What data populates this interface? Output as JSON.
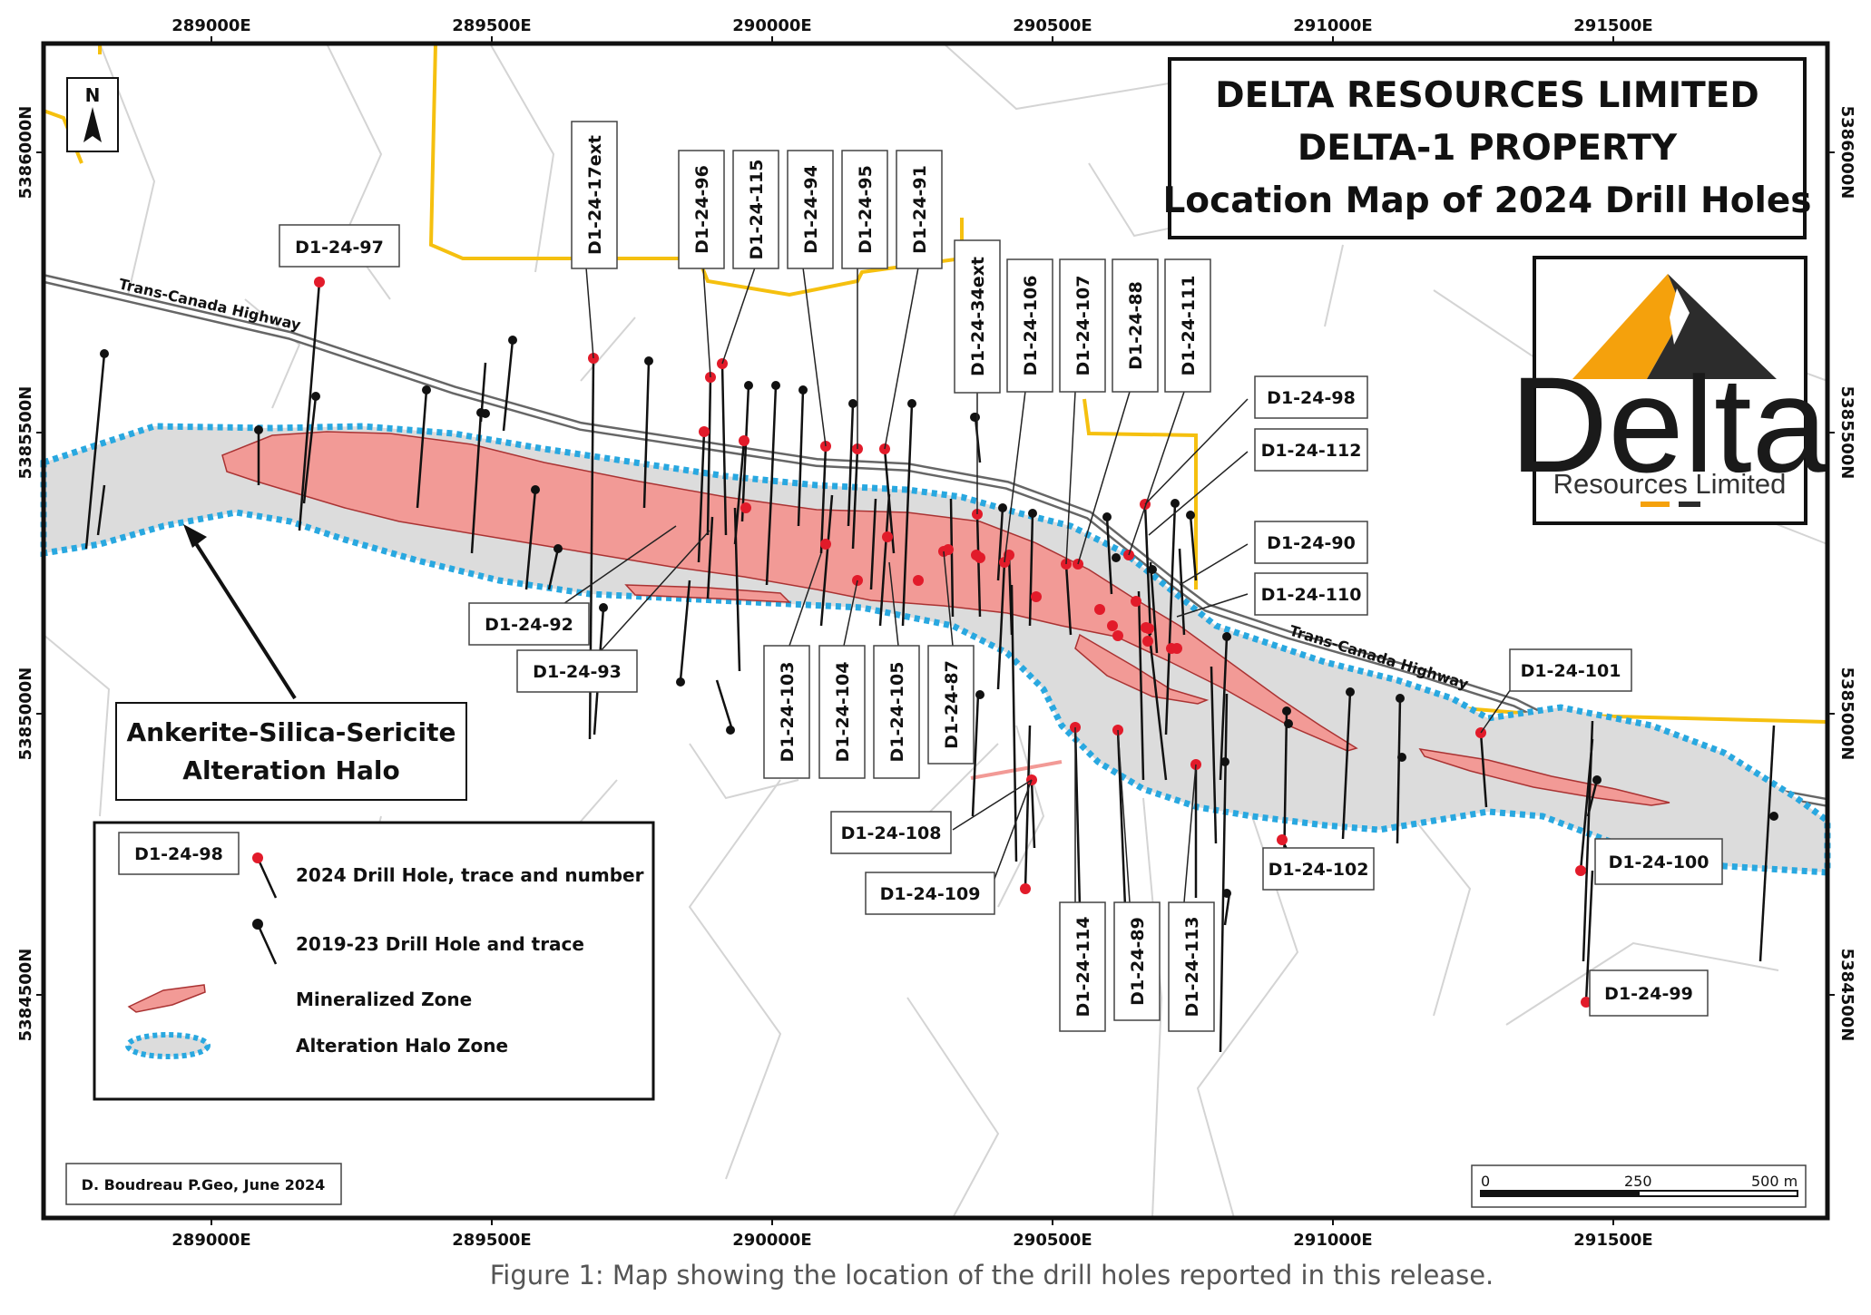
{
  "title": {
    "line1": "DELTA RESOURCES LIMITED",
    "line2": "DELTA-1 PROPERTY",
    "line3": "Location Map of 2024 Drill Holes"
  },
  "logo": {
    "name": "Delta",
    "sub": "Resources Limited"
  },
  "north_arrow": "N",
  "axes": {
    "eastings": [
      "289000E",
      "289500E",
      "290000E",
      "290500E",
      "291000E",
      "291500E"
    ],
    "northings": [
      "5386000N",
      "5385500N",
      "5385000N",
      "5384500N"
    ]
  },
  "roads": {
    "highway": "Trans-Canada Highway"
  },
  "halo_label": {
    "line1": "Ankerite-Silica-Sericite",
    "line2": "Alteration Halo"
  },
  "drill_holes_2024": [
    "D1-24-97",
    "D1-24-17ext",
    "D1-24-96",
    "D1-24-115",
    "D1-24-94",
    "D1-24-95",
    "D1-24-91",
    "D1-24-34ext",
    "D1-24-106",
    "D1-24-107",
    "D1-24-88",
    "D1-24-111",
    "D1-24-98",
    "D1-24-112",
    "D1-24-90",
    "D1-24-110",
    "D1-24-101",
    "D1-24-92",
    "D1-24-93",
    "D1-24-103",
    "D1-24-104",
    "D1-24-105",
    "D1-24-87",
    "D1-24-108",
    "D1-24-109",
    "D1-24-114",
    "D1-24-89",
    "D1-24-113",
    "D1-24-102",
    "D1-24-100",
    "D1-24-99"
  ],
  "legend": {
    "sample_label": "D1-24-98",
    "item_2024": "2024 Drill Hole, trace and number",
    "item_older": "2019-23 Drill Hole and trace",
    "item_mineral": "Mineralized Zone",
    "item_halo": "Alteration Halo Zone"
  },
  "credit": "D. Boudreau P.Geo, June 2024",
  "scale_bar": {
    "tick0": "0",
    "tick1": "250",
    "tick2": "500 m"
  },
  "caption": "Figure 1: Map showing the location of the drill holes reported in this release.",
  "colors": {
    "halo_fill": "#dcdcdc",
    "halo_edge": "#29a8e0",
    "mineral": "#f29a96",
    "hole_2024": "#e21b2a",
    "hole_old": "#111111",
    "property_line": "#f5c00f",
    "logo_orange": "#f5a10c"
  }
}
